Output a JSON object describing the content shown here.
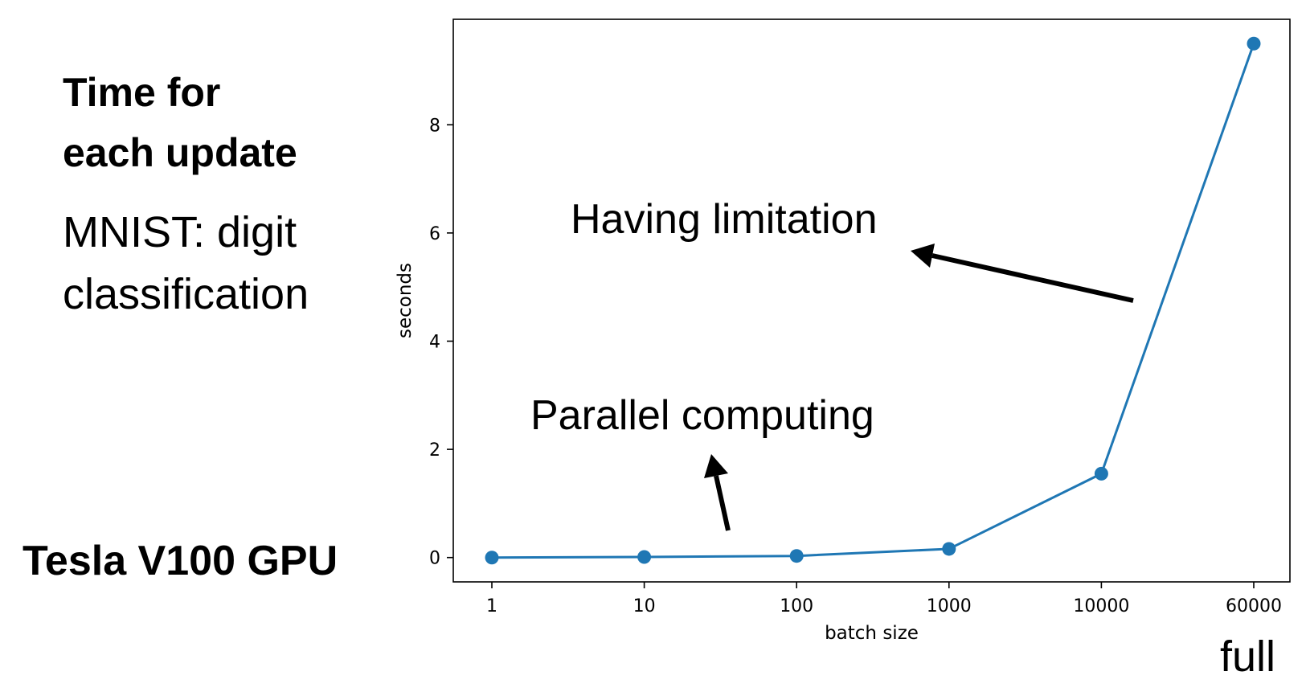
{
  "slide": {
    "title_line_1": "Time for",
    "title_line_2": "each update",
    "subtitle_line_1": "MNIST: digit",
    "subtitle_line_2": "classification",
    "device": "Tesla V100 GPU",
    "full_label": "full"
  },
  "chart_data": {
    "type": "line",
    "title": "",
    "xlabel": "batch size",
    "ylabel": "seconds",
    "categories": [
      "1",
      "10",
      "100",
      "1000",
      "10000",
      "60000"
    ],
    "series": [
      {
        "values": [
          0.0,
          0.01,
          0.03,
          0.16,
          1.55,
          9.5
        ]
      }
    ],
    "ylim": [
      -0.45,
      9.95
    ],
    "yticks": [
      0,
      2,
      4,
      6,
      8
    ],
    "grid": false,
    "line_color": "#1f77b4",
    "annotations": [
      {
        "text": "Having limitation"
      },
      {
        "text": "Parallel computing"
      }
    ]
  }
}
